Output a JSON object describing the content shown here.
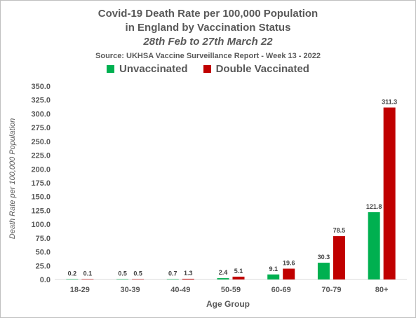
{
  "chart_data": {
    "type": "bar",
    "title": "Covid-19 Death Rate per 100,000 Population",
    "title_line2": "in England by Vaccination Status",
    "subtitle": "28th Feb to 27th March 22",
    "source": "Source: UKHSA Vaccine Surveillance Report - Week 13 - 2022",
    "xlabel": "Age Group",
    "ylabel": "Death Rate per 100,000 Population",
    "categories": [
      "18-29",
      "30-39",
      "40-49",
      "50-59",
      "60-69",
      "70-79",
      "80+"
    ],
    "series": [
      {
        "name": "Unvaccinated",
        "color": "#00b050",
        "values": [
          0.2,
          0.5,
          0.7,
          2.4,
          9.1,
          30.3,
          121.8
        ],
        "labels": [
          "0.2",
          "0.5",
          "0.7",
          "2.4",
          "9.1",
          "30.3",
          "121.8"
        ]
      },
      {
        "name": "Double Vaccinated",
        "color": "#c00000",
        "values": [
          0.1,
          0.5,
          1.3,
          5.1,
          19.6,
          78.5,
          311.3
        ],
        "labels": [
          "0.1",
          "0.5",
          "1.3",
          "5.1",
          "19.6",
          "78.5",
          "311.3"
        ]
      }
    ],
    "ylim": [
      0,
      350
    ],
    "yticks": [
      "0.0",
      "25.0",
      "50.0",
      "75.0",
      "100.0",
      "125.0",
      "150.0",
      "175.0",
      "200.0",
      "225.0",
      "250.0",
      "275.0",
      "300.0",
      "325.0",
      "350.0"
    ],
    "grid": false,
    "legend_position": "top"
  }
}
